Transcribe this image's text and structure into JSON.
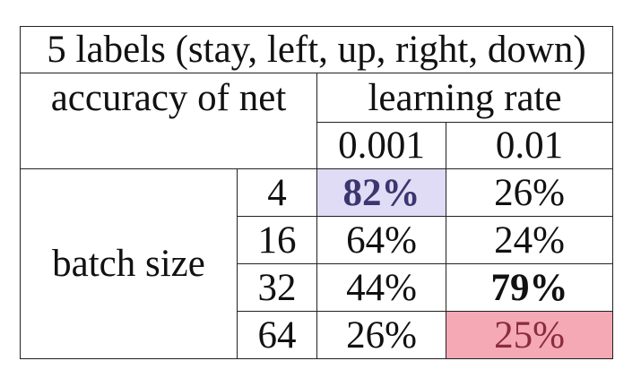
{
  "table": {
    "title": "5 labels (stay, left, up, right, down)",
    "corner_label": "accuracy of net",
    "column_group_label": "learning rate",
    "columns": [
      "0.001",
      "0.01"
    ],
    "row_group_label": "batch size",
    "rows": [
      {
        "batch": "4",
        "values": [
          "82%",
          "26%"
        ]
      },
      {
        "batch": "16",
        "values": [
          "64%",
          "24%"
        ]
      },
      {
        "batch": "32",
        "values": [
          "44%",
          "79%"
        ]
      },
      {
        "batch": "64",
        "values": [
          "26%",
          "25%"
        ]
      }
    ],
    "highlights": {
      "best_lr_0001": {
        "value": "82%",
        "color": "#e0dcf5",
        "bold": true
      },
      "best_lr_001": {
        "value": "79%",
        "bold": true
      },
      "marked_cell": {
        "value": "25%",
        "color": "#f5a9b4"
      }
    }
  }
}
